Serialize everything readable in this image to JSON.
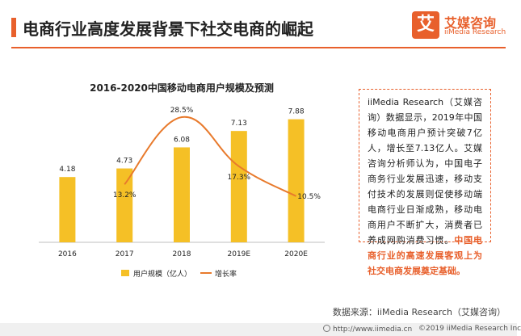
{
  "header": {
    "title": "电商行业高度发展背景下社交电商的崛起"
  },
  "logo": {
    "glyph": "艾",
    "cn": "艾媒咨询",
    "en": "iiMedia Research"
  },
  "chart_data": {
    "type": "bar",
    "title": "2016-2020中国移动电商用户规模及预测",
    "categories": [
      "2016",
      "2017",
      "2018",
      "2019E",
      "2020E"
    ],
    "series": [
      {
        "name": "用户规模（亿人）",
        "type": "bar",
        "values": [
          4.18,
          4.73,
          6.08,
          7.13,
          7.88
        ],
        "labels": [
          "4.18",
          "4.73",
          "6.08",
          "7.13",
          "7.88"
        ]
      },
      {
        "name": "增长率",
        "type": "line",
        "values": [
          null,
          13.2,
          28.5,
          17.3,
          10.5
        ],
        "labels": [
          "",
          "13.2%",
          "28.5%",
          "17.3%",
          "10.5%"
        ],
        "unit": "%"
      }
    ],
    "ylim": [
      0,
      9
    ],
    "ylim_right": [
      0,
      32
    ],
    "legend_position": "bottom",
    "grid": false,
    "colors": {
      "bar": "#f5c026",
      "line": "#e87a2c"
    }
  },
  "textbox": {
    "body": "iiMedia Research（艾媒咨询）数据显示，2019年中国移动电商用户预计突破7亿人，增长至7.13亿人。艾媒咨询分析师认为，中国电子商务行业发展迅速，移动支付技术的发展则促使移动端电商行业日渐成熟，移动电商用户不断扩大，消费者已养成网购消费习惯。",
    "highlight": "中国电商行业的高速发展客观上为社交电商发展奠定基础。"
  },
  "source": "数据来源：iiMedia Research（艾媒咨询）",
  "footer": {
    "url": "http://www.iimedia.cn",
    "copyright": "©2019  iiMedia Research Inc"
  }
}
